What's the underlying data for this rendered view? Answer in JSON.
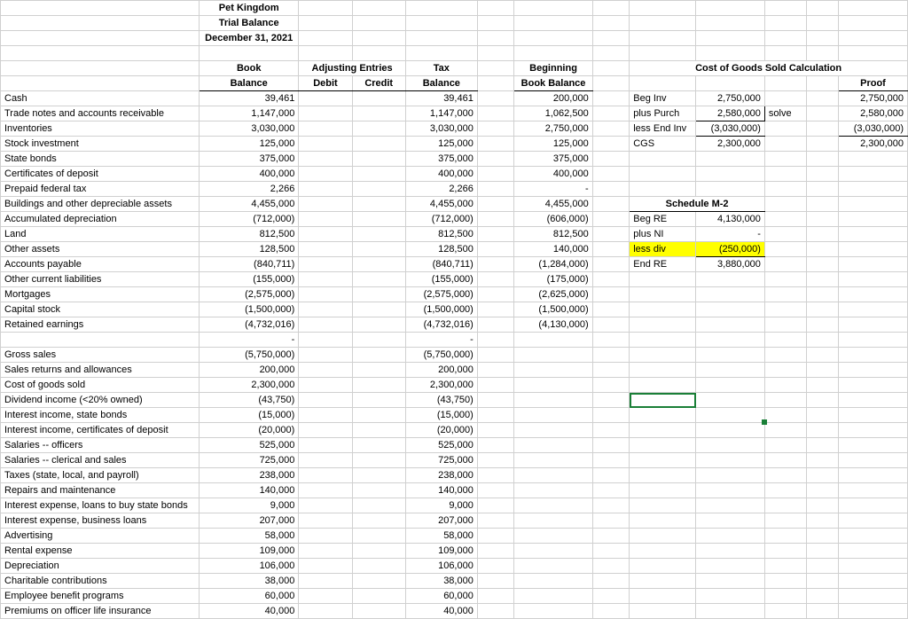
{
  "header": {
    "t1": "Pet Kingdom",
    "t2": "Trial Balance",
    "t3": "December 31, 2021"
  },
  "cols": {
    "book": "Book",
    "balance": "Balance",
    "adj": "Adjusting Entries",
    "debit": "Debit",
    "credit": "Credit",
    "tax": "Tax",
    "balance2": "Balance",
    "beg": "Beginning",
    "bookbal": "Book Balance",
    "cogs_title": "Cost of Goods Sold Calculation",
    "proof": "Proof"
  },
  "cogs": {
    "r1l": "Beg Inv",
    "r1v": "2,750,000",
    "r1p": "2,750,000",
    "r2l": "plus Purch",
    "r2v": "2,580,000",
    "r2n": "solve",
    "r2p": "2,580,000",
    "r3l": "less End Inv",
    "r3v": "(3,030,000)",
    "r3p": "(3,030,000)",
    "r4l": "CGS",
    "r4v": "2,300,000",
    "r4p": "2,300,000"
  },
  "m2": {
    "title": "Schedule M-2",
    "r1l": "Beg RE",
    "r1v": "4,130,000",
    "r2l": " plus NI",
    "r2v": "-",
    "r3l": "less div",
    "r3v": "(250,000)",
    "r4l": "End RE",
    "r4v": "3,880,000"
  },
  "rows": [
    {
      "a": "Cash",
      "b": "39,461",
      "e": "39,461",
      "g": "200,000"
    },
    {
      "a": "Trade notes and accounts receivable",
      "b": "1,147,000",
      "e": "1,147,000",
      "g": "1,062,500"
    },
    {
      "a": "Inventories",
      "b": "3,030,000",
      "e": "3,030,000",
      "g": "2,750,000"
    },
    {
      "a": "Stock investment",
      "b": "125,000",
      "e": "125,000",
      "g": "125,000"
    },
    {
      "a": "State bonds",
      "b": "375,000",
      "e": "375,000",
      "g": "375,000"
    },
    {
      "a": "Certificates of deposit",
      "b": "400,000",
      "e": "400,000",
      "g": "400,000"
    },
    {
      "a": "Prepaid federal tax",
      "b": "2,266",
      "e": "2,266",
      "g": "-"
    },
    {
      "a": "Buildings and other depreciable assets",
      "b": "4,455,000",
      "e": "4,455,000",
      "g": "4,455,000"
    },
    {
      "a": "Accumulated depreciation",
      "b": "(712,000)",
      "e": "(712,000)",
      "g": "(606,000)"
    },
    {
      "a": "Land",
      "b": "812,500",
      "e": "812,500",
      "g": "812,500"
    },
    {
      "a": "Other assets",
      "b": "128,500",
      "e": "128,500",
      "g": "140,000"
    },
    {
      "a": "Accounts payable",
      "b": "(840,711)",
      "e": "(840,711)",
      "g": "(1,284,000)"
    },
    {
      "a": "Other current liabilities",
      "b": "(155,000)",
      "e": "(155,000)",
      "g": "(175,000)"
    },
    {
      "a": "Mortgages",
      "b": "(2,575,000)",
      "e": "(2,575,000)",
      "g": "(2,625,000)"
    },
    {
      "a": "Capital stock",
      "b": "(1,500,000)",
      "e": "(1,500,000)",
      "g": "(1,500,000)"
    },
    {
      "a": "Retained earnings",
      "b": "(4,732,016)",
      "e": "(4,732,016)",
      "g": "(4,130,000)"
    },
    {
      "a": "",
      "b": "-",
      "e": "-",
      "g": ""
    },
    {
      "a": "Gross sales",
      "b": "(5,750,000)",
      "e": "(5,750,000)",
      "g": ""
    },
    {
      "a": "Sales returns and allowances",
      "b": "200,000",
      "e": "200,000",
      "g": ""
    },
    {
      "a": "Cost of goods sold",
      "b": "2,300,000",
      "e": "2,300,000",
      "g": ""
    },
    {
      "a": "Dividend income (<20% owned)",
      "b": "(43,750)",
      "e": "(43,750)",
      "g": ""
    },
    {
      "a": "Interest income, state bonds",
      "b": "(15,000)",
      "e": "(15,000)",
      "g": ""
    },
    {
      "a": "Interest income, certificates of deposit",
      "b": "(20,000)",
      "e": "(20,000)",
      "g": ""
    },
    {
      "a": "Salaries -- officers",
      "b": "525,000",
      "e": "525,000",
      "g": ""
    },
    {
      "a": "Salaries -- clerical and sales",
      "b": "725,000",
      "e": "725,000",
      "g": ""
    },
    {
      "a": "Taxes (state, local, and payroll)",
      "b": "238,000",
      "e": "238,000",
      "g": ""
    },
    {
      "a": "Repairs and maintenance",
      "b": "140,000",
      "e": "140,000",
      "g": ""
    },
    {
      "a": "Interest expense, loans to buy state bonds",
      "b": "9,000",
      "e": "9,000",
      "g": ""
    },
    {
      "a": "Interest expense, business loans",
      "b": "207,000",
      "e": "207,000",
      "g": ""
    },
    {
      "a": "Advertising",
      "b": "58,000",
      "e": "58,000",
      "g": ""
    },
    {
      "a": "Rental expense",
      "b": "109,000",
      "e": "109,000",
      "g": ""
    },
    {
      "a": "Depreciation",
      "b": "106,000",
      "e": "106,000",
      "g": ""
    },
    {
      "a": "Charitable contributions",
      "b": "38,000",
      "e": "38,000",
      "g": ""
    },
    {
      "a": "Employee benefit programs",
      "b": "60,000",
      "e": "60,000",
      "g": ""
    },
    {
      "a": "Premiums on officer life insurance",
      "b": "40,000",
      "e": "40,000",
      "g": ""
    }
  ],
  "colors": {
    "grid": "#d0d0d0",
    "highlight": "#ffff00",
    "sel": "#1a7f37",
    "bg": "#ffffff"
  }
}
